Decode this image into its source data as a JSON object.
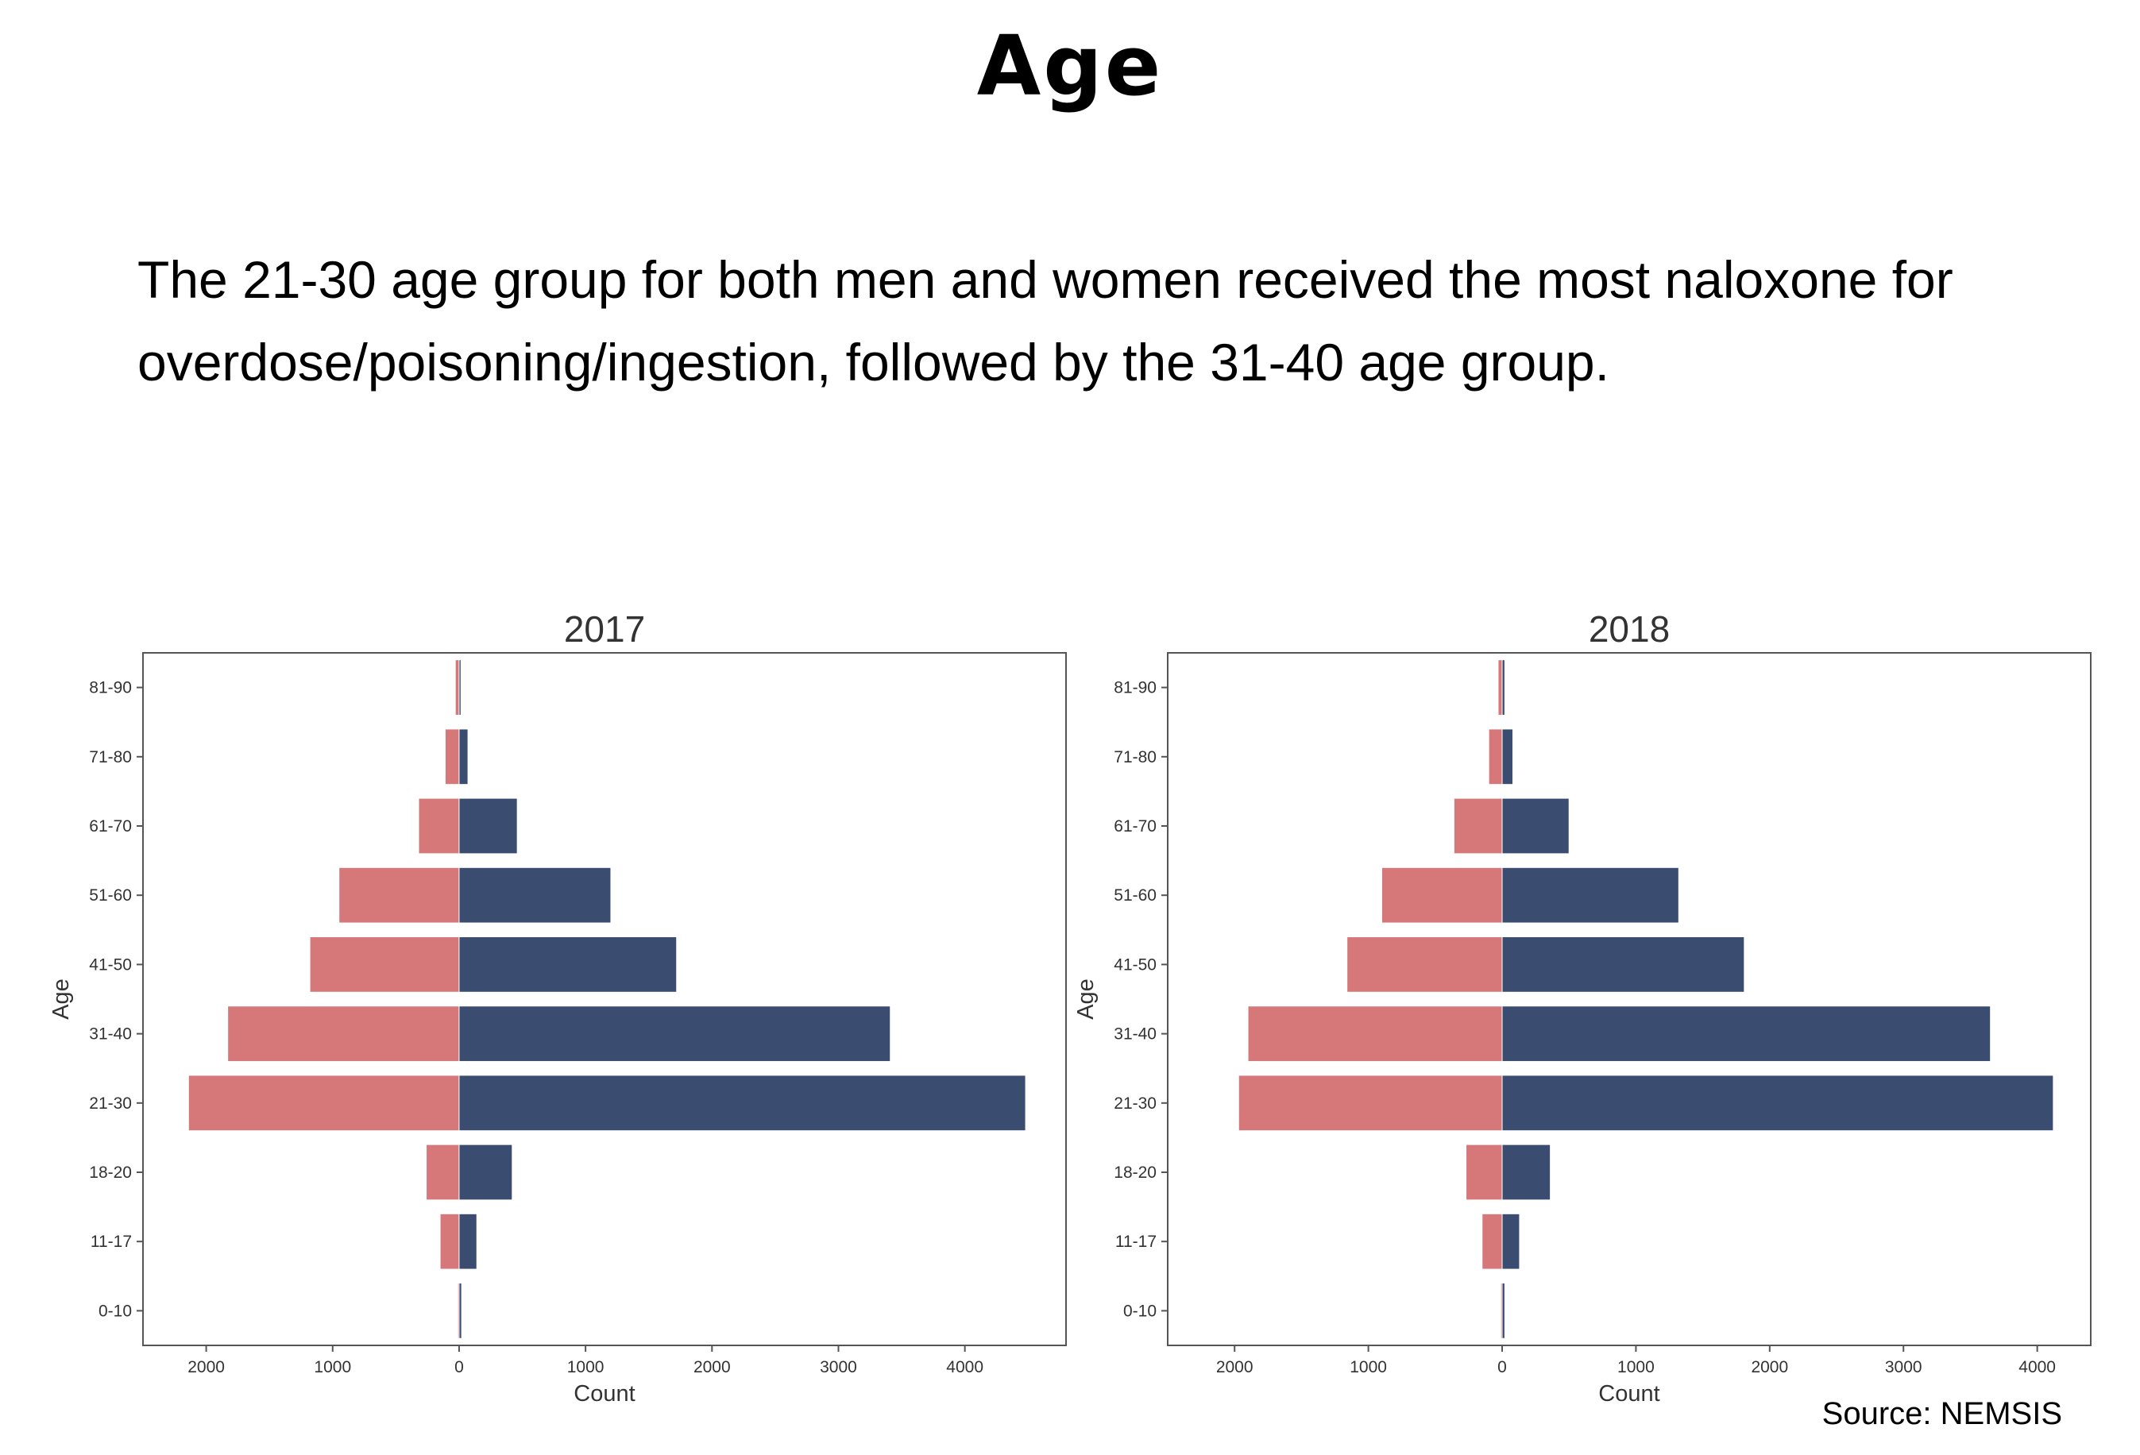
{
  "page": {
    "title": "Age",
    "description": "The 21-30 age group for both men and women received the most naloxone for overdose/poisoning/ingestion, followed by the 31-40 age group.",
    "source": "Source: NEMSIS"
  },
  "colors": {
    "left_series": "#d6787a",
    "right_series": "#3a4d70",
    "axis": "#555555",
    "text": "#333333"
  },
  "chart_data": [
    {
      "type": "bar",
      "orientation": "horizontal",
      "layout": "population-pyramid",
      "title": "2017",
      "xlabel": "Count",
      "ylabel": "Age",
      "categories": [
        "81-90",
        "71-80",
        "61-70",
        "51-60",
        "41-50",
        "31-40",
        "21-30",
        "18-20",
        "11-17",
        "0-10"
      ],
      "xlim": [
        -2500,
        4800
      ],
      "xticks": [
        -2000,
        -1000,
        0,
        1000,
        2000,
        3000,
        4000
      ],
      "xtick_labels": [
        "2000",
        "1000",
        "0",
        "1000",
        "2000",
        "3000",
        "4000"
      ],
      "series": [
        {
          "side": "left",
          "color": "#d6787a",
          "values": [
            30,
            110,
            320,
            950,
            1180,
            1830,
            2140,
            260,
            150,
            10
          ]
        },
        {
          "side": "right",
          "color": "#3a4d70",
          "values": [
            15,
            70,
            460,
            1200,
            1720,
            3410,
            4480,
            420,
            140,
            20
          ]
        }
      ],
      "grid": false
    },
    {
      "type": "bar",
      "orientation": "horizontal",
      "layout": "population-pyramid",
      "title": "2018",
      "xlabel": "Count",
      "ylabel": "Age",
      "categories": [
        "81-90",
        "71-80",
        "61-70",
        "51-60",
        "41-50",
        "31-40",
        "21-30",
        "18-20",
        "11-17",
        "0-10"
      ],
      "xlim": [
        -2500,
        4400
      ],
      "xticks": [
        -2000,
        -1000,
        0,
        1000,
        2000,
        3000,
        4000
      ],
      "xtick_labels": [
        "2000",
        "1000",
        "0",
        "1000",
        "2000",
        "3000",
        "4000"
      ],
      "series": [
        {
          "side": "left",
          "color": "#d6787a",
          "values": [
            30,
            100,
            360,
            900,
            1160,
            1900,
            1970,
            270,
            150,
            10
          ]
        },
        {
          "side": "right",
          "color": "#3a4d70",
          "values": [
            20,
            80,
            500,
            1320,
            1810,
            3650,
            4120,
            360,
            130,
            20
          ]
        }
      ],
      "grid": false
    }
  ]
}
